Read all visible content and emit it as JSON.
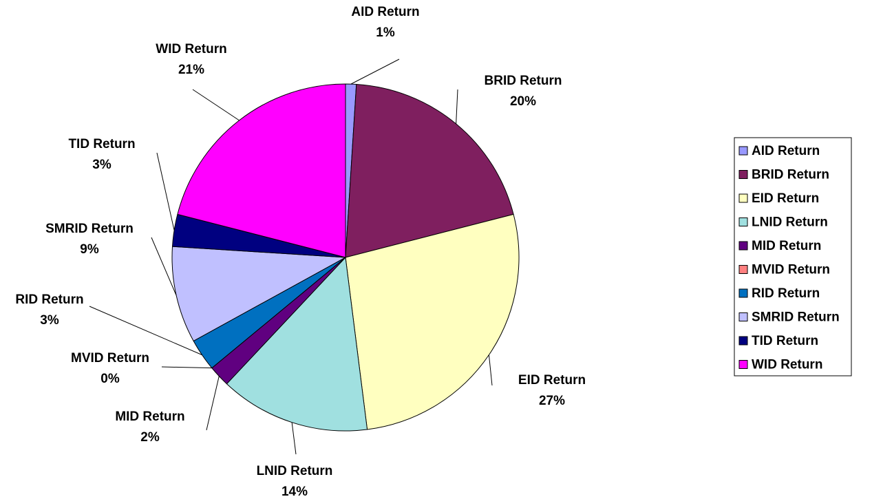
{
  "chart_data": {
    "type": "pie",
    "categories": [
      "AID Return",
      "BRID Return",
      "EID Return",
      "LNID Return",
      "MID Return",
      "MVID Return",
      "RID Return",
      "SMRID Return",
      "TID Return",
      "WID Return"
    ],
    "values": [
      1,
      20,
      27,
      14,
      2,
      0,
      3,
      9,
      3,
      21
    ],
    "value_labels": [
      "1%",
      "20%",
      "27%",
      "14%",
      "2%",
      "0%",
      "3%",
      "9%",
      "3%",
      "21%"
    ],
    "colors": [
      "#9999ff",
      "#7f1f5f",
      "#ffffc0",
      "#a0e0e0",
      "#600080",
      "#ff8080",
      "#0070c0",
      "#c0c0ff",
      "#000080",
      "#ff00ff"
    ],
    "legend": "right"
  }
}
